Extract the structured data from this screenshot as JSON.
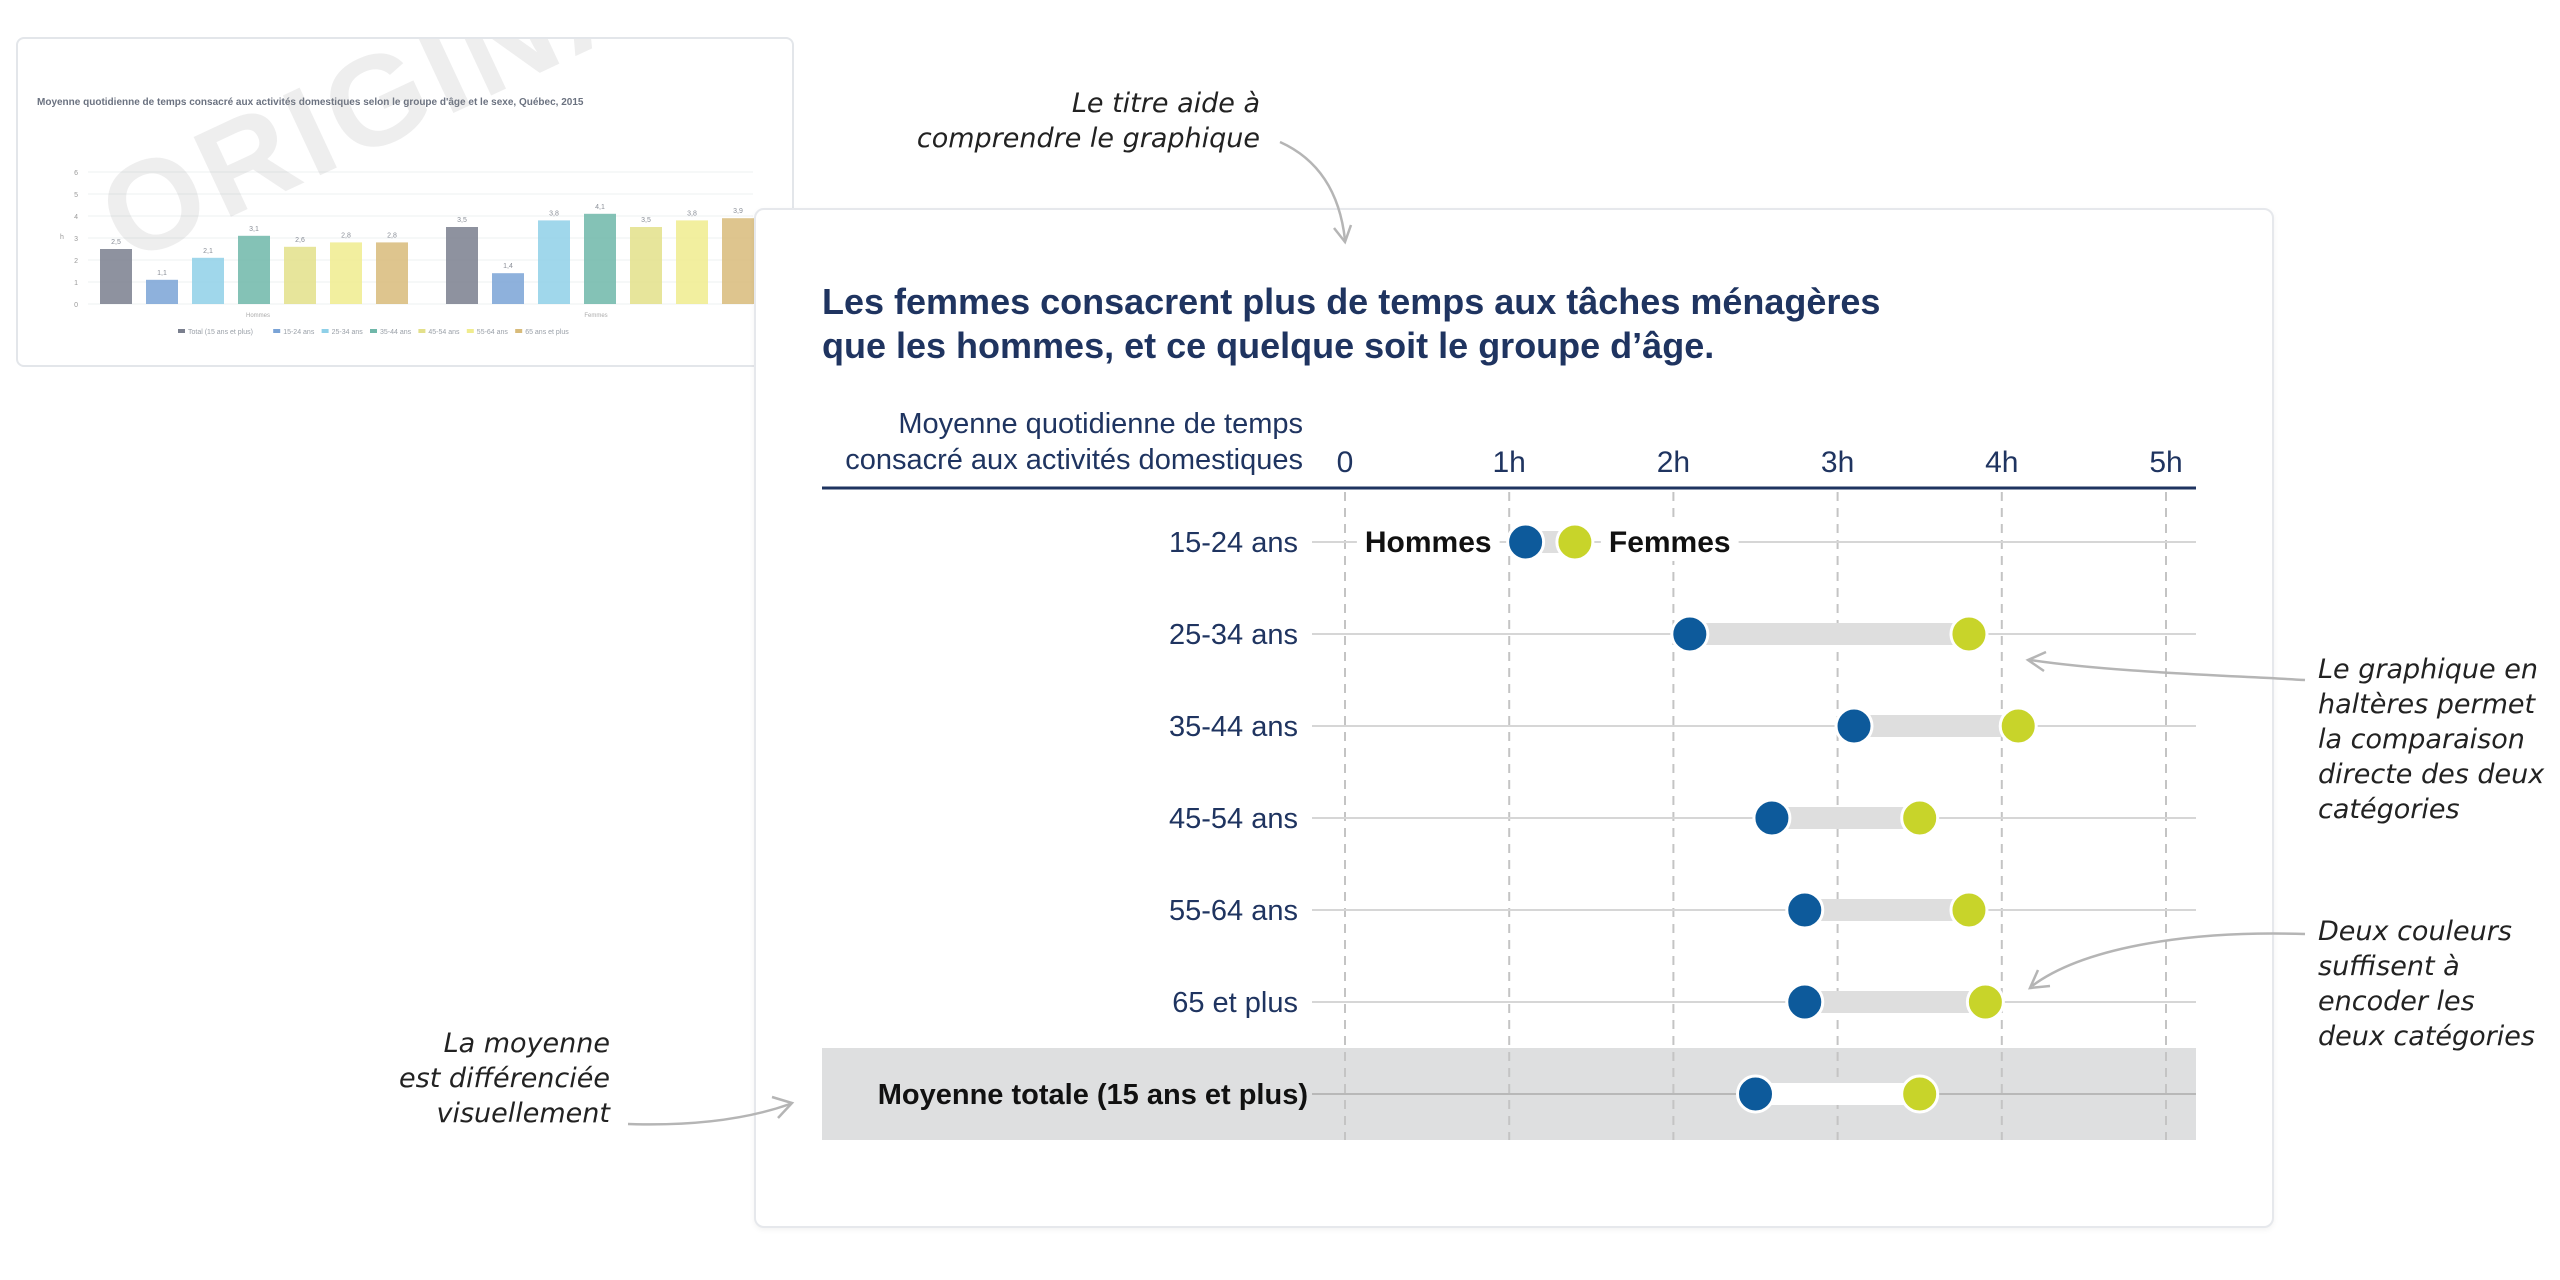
{
  "original": {
    "title": "Moyenne quotidienne de temps consacré aux activités domestiques selon le groupe d'âge et le sexe, Québec, 2015",
    "watermark": "ORIGINAL",
    "bar_labels": [
      "2,5",
      "1,1",
      "2,1",
      "3,1",
      "2,6",
      "2,8",
      "2,8",
      "3,5",
      "1,4",
      "3,8",
      "4,1",
      "3,5",
      "3,8",
      "3,9"
    ],
    "group_labels": [
      "Hommes",
      "Femmes"
    ],
    "legend": [
      "Total (15 ans et plus)",
      "15-24 ans",
      "25-34 ans",
      "35-44 ans",
      "45-54 ans",
      "55-64 ans",
      "65 ans et plus"
    ]
  },
  "headline": {
    "line1": "Les femmes consacrent plus de temps aux tâches ménagères",
    "line2": "que les hommes, et ce quelque soit le groupe d’âge."
  },
  "axis_caption": {
    "line1": "Moyenne quotidienne de temps",
    "line2": "consacré aux activités domestiques"
  },
  "annotations": {
    "title_note": [
      "Le titre aide à",
      "comprendre le graphique"
    ],
    "dumbbell_note": [
      "Le graphique en",
      "haltères permet",
      "la comparaison",
      "directe des deux",
      "catégories"
    ],
    "colors_note": [
      "Deux couleurs",
      "suffisent à",
      "encoder les",
      "deux catégories"
    ],
    "average_note": [
      "La moyenne",
      "est différenciée",
      "visuellement"
    ]
  },
  "colors": {
    "hommes": "#0d5a9b",
    "femmes": "#c8d42a",
    "title": "#1f3460",
    "bar_connector": "#dedede",
    "total_band": "#dedfe0"
  },
  "chart_data": {
    "type": "dumbbell",
    "title": "Les femmes consacrent plus de temps aux tâches ménagères que les hommes, et ce quelque soit le groupe d’âge.",
    "xlabel": "Moyenne quotidienne de temps consacré aux activités domestiques",
    "xlim": [
      0,
      5
    ],
    "xticks": [
      "0",
      "1h",
      "2h",
      "3h",
      "4h",
      "5h"
    ],
    "grid": true,
    "categories": [
      "15-24 ans",
      "25-34 ans",
      "35-44 ans",
      "45-54 ans",
      "55-64 ans",
      "65 et plus",
      "Moyenne totale (15 ans et plus)"
    ],
    "series": [
      {
        "name": "Hommes",
        "values": [
          1.1,
          2.1,
          3.1,
          2.6,
          2.8,
          2.8,
          2.5
        ]
      },
      {
        "name": "Femmes",
        "values": [
          1.4,
          3.8,
          4.1,
          3.5,
          3.8,
          3.9,
          3.5
        ]
      }
    ]
  }
}
